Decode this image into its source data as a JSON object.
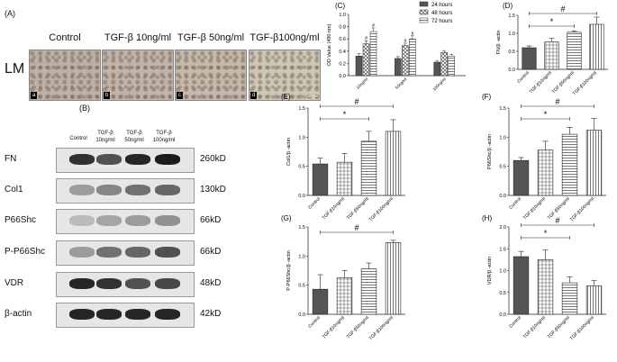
{
  "panelA": {
    "label": "(A)",
    "row_label": "LM",
    "images": [
      {
        "title": "Control",
        "letter": "a",
        "color": "#bdb1a6"
      },
      {
        "title": "TGF-β 10ng/ml",
        "letter": "b",
        "color": "#c2b4a8"
      },
      {
        "title": "TGF-β 50ng/ml",
        "letter": "c",
        "color": "#c4b9aa"
      },
      {
        "title": "TGF-β100ng/ml",
        "letter": "d",
        "color": "#cfc7b6"
      }
    ],
    "scale": "50 μm"
  },
  "panelB": {
    "label": "(B)",
    "lanes": [
      {
        "line1": "Control",
        "line2": ""
      },
      {
        "line1": "TGF-β",
        "line2": "10ng/ml"
      },
      {
        "line1": "TGF-β",
        "line2": "50ng/ml"
      },
      {
        "line1": "TGF-β",
        "line2": "100ng/ml"
      }
    ],
    "proteins": [
      {
        "name": "FN",
        "kd": "260kD",
        "intensity": [
          0.85,
          0.7,
          0.9,
          0.95
        ]
      },
      {
        "name": "Col1",
        "kd": "130kD",
        "intensity": [
          0.35,
          0.45,
          0.55,
          0.6
        ]
      },
      {
        "name": "P66Shc",
        "kd": "66kD",
        "intensity": [
          0.2,
          0.3,
          0.35,
          0.4
        ]
      },
      {
        "name": "P-P66Shc",
        "kd": "66kD",
        "intensity": [
          0.35,
          0.55,
          0.6,
          0.7
        ]
      },
      {
        "name": "VDR",
        "kd": "48kD",
        "intensity": [
          0.9,
          0.85,
          0.7,
          0.75
        ]
      },
      {
        "name": "β-actin",
        "kd": "42kD",
        "intensity": [
          0.9,
          0.9,
          0.9,
          0.9
        ]
      }
    ]
  },
  "chart_data": [
    {
      "panel": "(C)",
      "type": "bar",
      "ylabel": "OD Value (490 nm)",
      "categories": [
        "10ng/ml",
        "50ng/ml",
        "100ng/ml"
      ],
      "ylim": [
        0,
        1.0
      ],
      "yticks": [
        "0.0",
        "0.2",
        "0.4",
        "0.6",
        "0.8",
        "1.0"
      ],
      "series": [
        {
          "name": "24 hours",
          "values": [
            0.32,
            0.28,
            0.22
          ],
          "err": [
            0.04,
            0.03,
            0.02
          ]
        },
        {
          "name": "48 hours",
          "values": [
            0.52,
            0.49,
            0.38
          ],
          "err": [
            0.05,
            0.04,
            0.03
          ]
        },
        {
          "name": "72 hours",
          "values": [
            0.72,
            0.6,
            0.32
          ],
          "err": [
            0.06,
            0.05,
            0.03
          ]
        }
      ],
      "annotations": [
        "#",
        "#",
        "#",
        "#",
        "#",
        "#"
      ]
    },
    {
      "panel": "(D)",
      "type": "bar",
      "ylabel": "FN/β -actin",
      "categories": [
        "Control",
        "TGF-β10ng/ml",
        "TGF-β50ng/ml",
        "TGF-β100ng/ml"
      ],
      "ylim": [
        0,
        1.5
      ],
      "yticks": [
        "0.0",
        "0.5",
        "1.0",
        "1.5"
      ],
      "values": [
        0.6,
        0.76,
        1.03,
        1.25
      ],
      "err": [
        0.05,
        0.1,
        0.04,
        0.2
      ],
      "sig": [
        {
          "from": 0,
          "to": 2,
          "mark": "*"
        },
        {
          "from": 0,
          "to": 3,
          "mark": "#"
        }
      ]
    },
    {
      "panel": "(E)",
      "type": "bar",
      "ylabel": "Col1/β -actin",
      "categories": [
        "Control",
        "TGF-β10ng/ml",
        "TGF-β50ng/ml",
        "TGF-β100ng/ml"
      ],
      "ylim": [
        0,
        1.5
      ],
      "yticks": [
        "0.0",
        "0.5",
        "1.0",
        "1.5"
      ],
      "values": [
        0.54,
        0.57,
        0.93,
        1.1
      ],
      "err": [
        0.1,
        0.15,
        0.17,
        0.2
      ],
      "sig": [
        {
          "from": 0,
          "to": 2,
          "mark": "*"
        },
        {
          "from": 0,
          "to": 3,
          "mark": "#"
        }
      ]
    },
    {
      "panel": "(F)",
      "type": "bar",
      "ylabel": "P66Shc/β -actin",
      "categories": [
        "Control",
        "TGF-β10ng/ml",
        "TGF-β50ng/ml",
        "TGF-β100ng/ml"
      ],
      "ylim": [
        0,
        1.5
      ],
      "yticks": [
        "0.0",
        "0.5",
        "1.0",
        "1.5"
      ],
      "values": [
        0.6,
        0.78,
        1.05,
        1.12
      ],
      "err": [
        0.05,
        0.15,
        0.12,
        0.2
      ],
      "sig": [
        {
          "from": 0,
          "to": 2,
          "mark": "*"
        },
        {
          "from": 0,
          "to": 3,
          "mark": "#"
        }
      ]
    },
    {
      "panel": "(G)",
      "type": "bar",
      "ylabel": "P-P66Shc/β -actin",
      "categories": [
        "Control",
        "TGF-β10ng/ml",
        "TGF-β50ng/ml",
        "TGF-β100ng/ml"
      ],
      "ylim": [
        0,
        1.5
      ],
      "yticks": [
        "0.0",
        "0.5",
        "1.0",
        "1.5"
      ],
      "values": [
        0.43,
        0.63,
        0.78,
        1.23
      ],
      "err": [
        0.25,
        0.12,
        0.1,
        0.04
      ],
      "sig": [
        {
          "from": 0,
          "to": 3,
          "mark": "#"
        }
      ]
    },
    {
      "panel": "(H)",
      "type": "bar",
      "ylabel": "VDR/β -actin",
      "categories": [
        "Control",
        "TGF-β10ng/ml",
        "TGF-β50ng/ml",
        "TGF-β100ng/ml"
      ],
      "ylim": [
        0,
        2.0
      ],
      "yticks": [
        "0.0",
        "0.5",
        "1.0",
        "1.5",
        "2.0"
      ],
      "values": [
        1.32,
        1.25,
        0.72,
        0.65
      ],
      "err": [
        0.12,
        0.22,
        0.14,
        0.12
      ],
      "sig": [
        {
          "from": 0,
          "to": 2,
          "mark": "*"
        },
        {
          "from": 0,
          "to": 3,
          "mark": "#"
        }
      ]
    }
  ]
}
